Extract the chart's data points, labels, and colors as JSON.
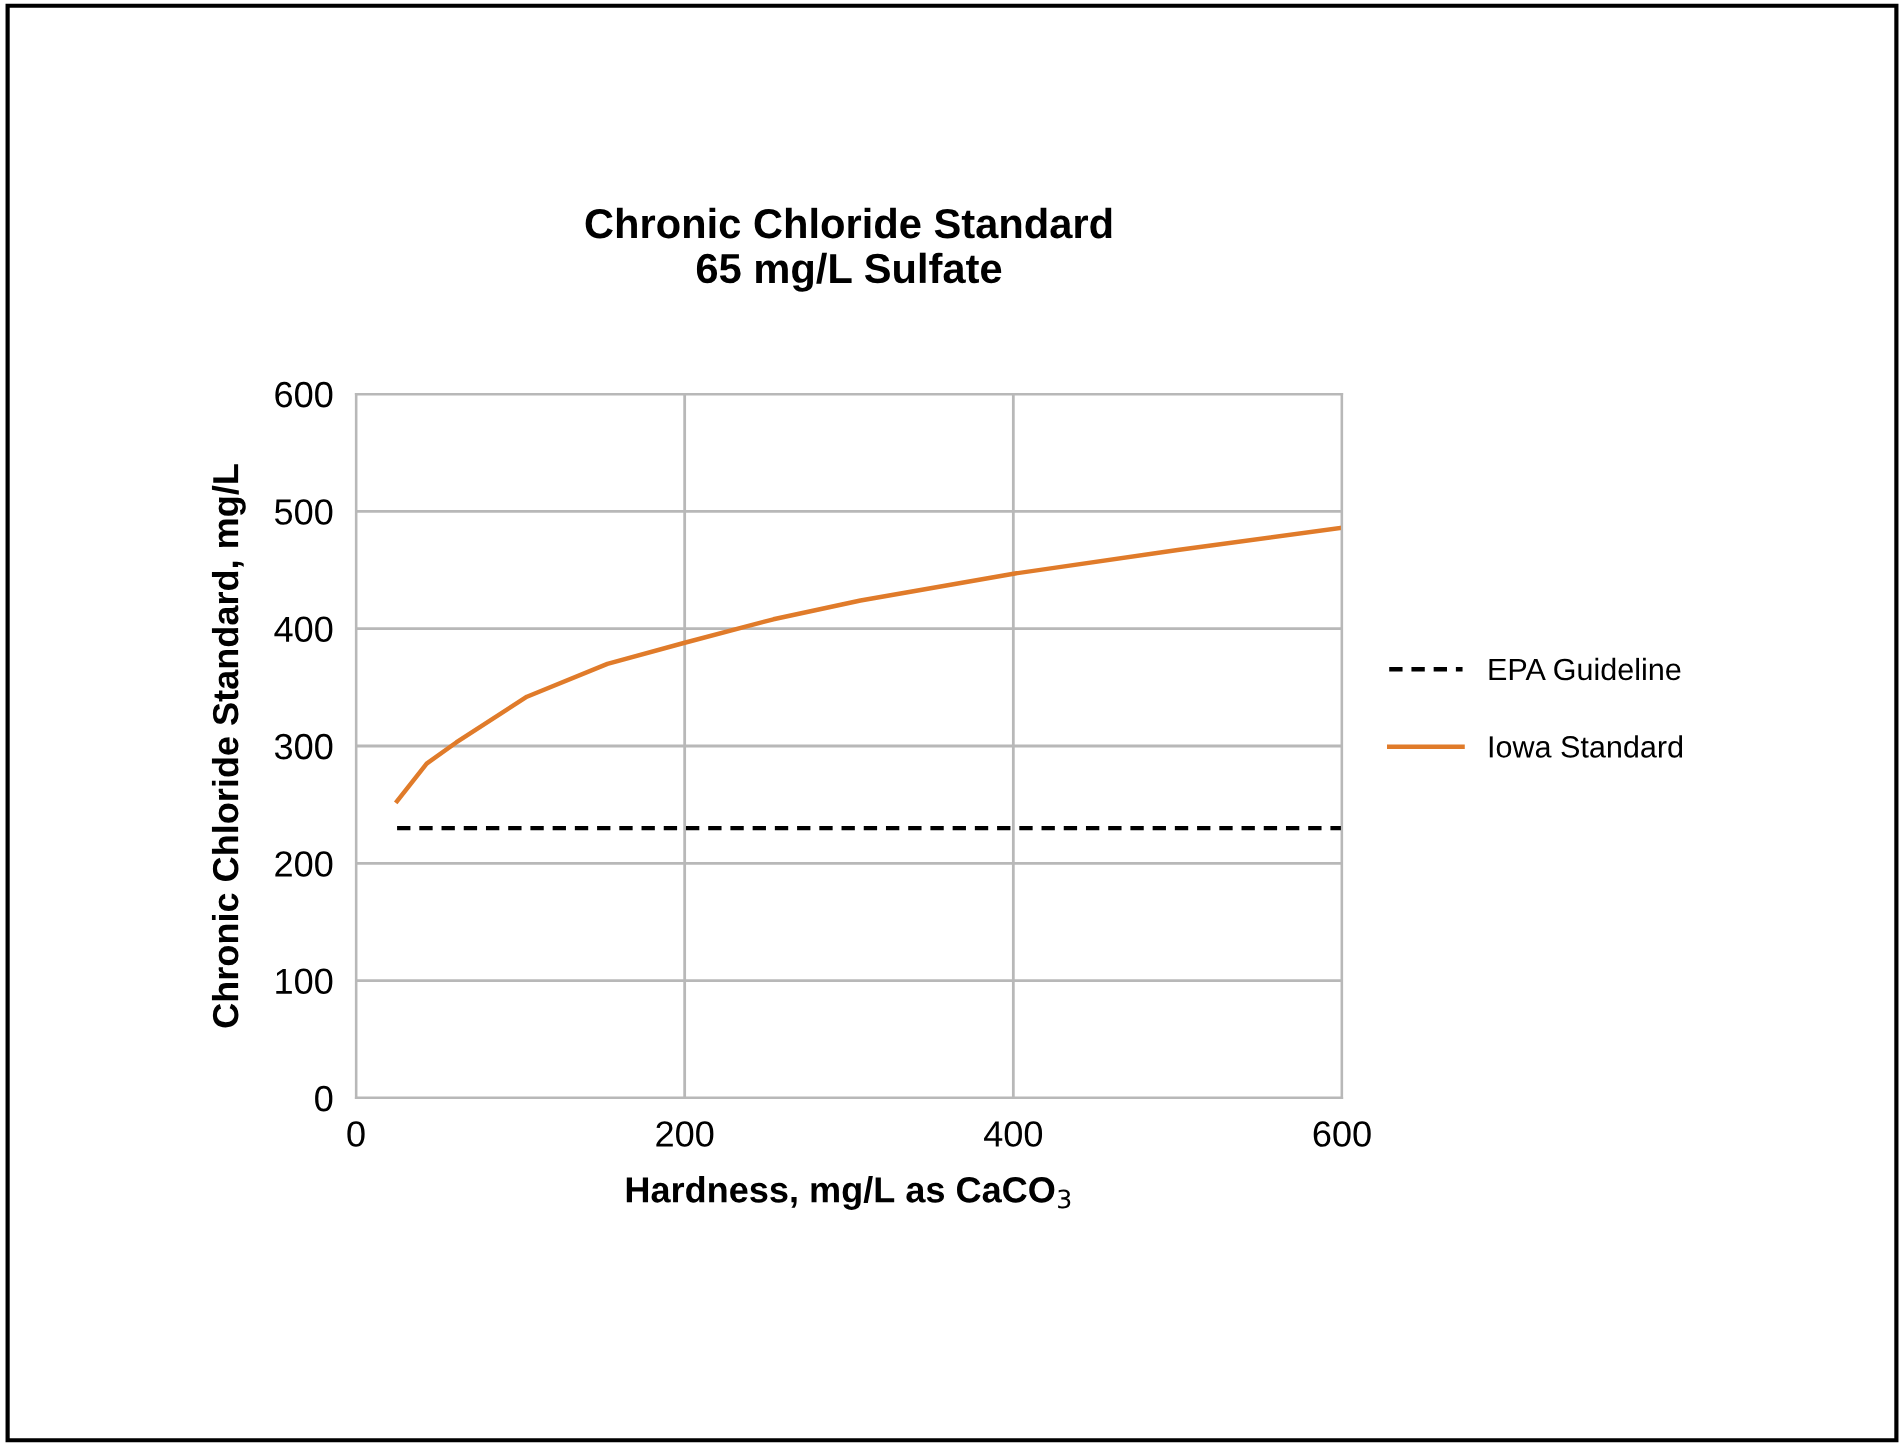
{
  "chart_data": {
    "type": "line",
    "title": "Chronic Chloride Standard\n65 mg/L Sulfate",
    "xlabel": "Hardness, mg/L as CaCO$_{3}$",
    "ylabel": "Chronic Chloride Standard, mg/L",
    "series": [
      {
        "name": "EPA Guideline",
        "color": "#000000",
        "line_style": "dashed",
        "x": [
          25,
          600
        ],
        "values": [
          230,
          230
        ]
      },
      {
        "name": "Iowa Standard",
        "color": "#e07b2a",
        "line_style": "solid",
        "x": [
          25,
          43,
          61,
          104,
          153,
          200,
          254,
          307,
          401,
          500,
          600
        ],
        "values": [
          253,
          285,
          303,
          342,
          370,
          388,
          408,
          424,
          447,
          467,
          486
        ]
      }
    ],
    "xlim": [
      0,
      600
    ],
    "xticks": [
      0,
      200,
      400,
      600
    ],
    "ylim": [
      0,
      600
    ],
    "yticks": [
      0,
      100,
      200,
      300,
      400,
      500,
      600
    ],
    "grid": true,
    "legend": "right",
    "marker": "none"
  }
}
